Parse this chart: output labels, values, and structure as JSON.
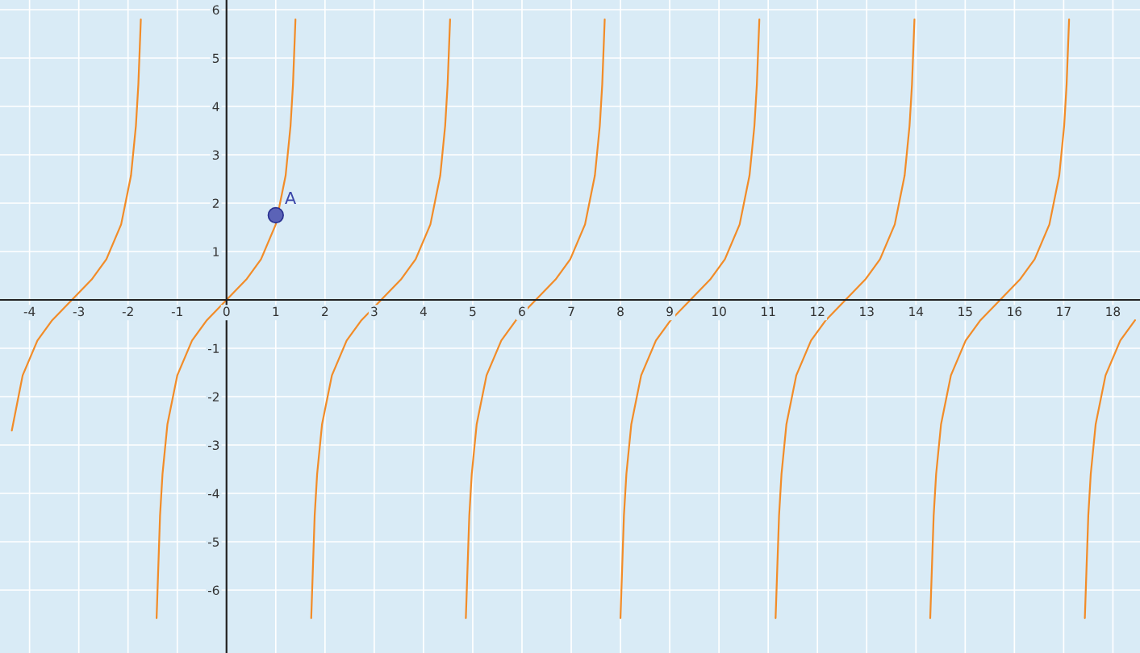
{
  "chart_data": {
    "type": "line",
    "xlim": [
      -4.6,
      18.55
    ],
    "ylim": [
      -7.3,
      6.2
    ],
    "xticks": [
      -4,
      -3,
      -2,
      -1,
      0,
      1,
      2,
      3,
      4,
      5,
      6,
      7,
      8,
      9,
      10,
      11,
      12,
      13,
      14,
      15,
      16,
      17,
      18
    ],
    "yticks": [
      -6,
      -5,
      -4,
      -3,
      -2,
      -1,
      {
        "value": 0,
        "label": null
      },
      1,
      2,
      3,
      4,
      5,
      6
    ],
    "grid": true,
    "marker": "none",
    "line_style": "solid",
    "series": [
      {
        "type": "line",
        "color": "#f28c28",
        "x": [
          -4.36,
          -4.14,
          -3.84,
          -3.54,
          -3.14,
          -2.74,
          -2.44,
          -2.14,
          -1.94,
          -1.84,
          -1.79,
          -1.74
        ],
        "values": [
          -2.7,
          -1.56,
          -0.84,
          -0.42,
          0,
          0.42,
          0.84,
          1.56,
          2.57,
          3.6,
          4.46,
          5.8
        ]
      },
      {
        "type": "line",
        "color": "#f28c28",
        "x": [
          -1.42,
          -1.35,
          -1.3,
          -1.2,
          -1.0,
          -0.7,
          -0.4,
          0,
          0.4,
          0.7,
          1.0,
          1.2,
          1.3,
          1.35,
          1.4
        ],
        "values": [
          -6.58,
          -4.46,
          -3.6,
          -2.57,
          -1.56,
          -0.84,
          -0.42,
          0,
          0.42,
          0.84,
          1.56,
          2.57,
          3.6,
          4.46,
          5.8
        ]
      },
      {
        "type": "line",
        "color": "#f28c28",
        "x": [
          1.72,
          1.79,
          1.84,
          1.94,
          2.14,
          2.44,
          2.74,
          3.14,
          3.54,
          3.84,
          4.14,
          4.34,
          4.44,
          4.49,
          4.54
        ],
        "values": [
          -6.58,
          -4.46,
          -3.6,
          -2.57,
          -1.56,
          -0.84,
          -0.42,
          0,
          0.42,
          0.84,
          1.56,
          2.57,
          3.6,
          4.46,
          5.8
        ]
      },
      {
        "type": "line",
        "color": "#f28c28",
        "x": [
          4.86,
          4.93,
          4.98,
          5.08,
          5.28,
          5.58,
          5.88,
          6.28,
          6.68,
          6.98,
          7.28,
          7.48,
          7.58,
          7.63,
          7.68
        ],
        "values": [
          -6.58,
          -4.46,
          -3.6,
          -2.57,
          -1.56,
          -0.84,
          -0.42,
          0,
          0.42,
          0.84,
          1.56,
          2.57,
          3.6,
          4.46,
          5.8
        ]
      },
      {
        "type": "line",
        "color": "#f28c28",
        "x": [
          8.0,
          8.07,
          8.12,
          8.22,
          8.42,
          8.72,
          9.02,
          9.42,
          9.82,
          10.12,
          10.42,
          10.62,
          10.72,
          10.77,
          10.82
        ],
        "values": [
          -6.58,
          -4.46,
          -3.6,
          -2.57,
          -1.56,
          -0.84,
          -0.42,
          0,
          0.42,
          0.84,
          1.56,
          2.57,
          3.6,
          4.46,
          5.8
        ]
      },
      {
        "type": "line",
        "color": "#f28c28",
        "x": [
          11.15,
          11.22,
          11.27,
          11.37,
          11.57,
          11.87,
          12.17,
          12.57,
          12.97,
          13.27,
          13.57,
          13.77,
          13.87,
          13.92,
          13.97
        ],
        "values": [
          -6.58,
          -4.46,
          -3.6,
          -2.57,
          -1.56,
          -0.84,
          -0.42,
          0,
          0.42,
          0.84,
          1.56,
          2.57,
          3.6,
          4.46,
          5.8
        ]
      },
      {
        "type": "line",
        "color": "#f28c28",
        "x": [
          14.29,
          14.36,
          14.41,
          14.51,
          14.71,
          15.01,
          15.31,
          15.71,
          16.11,
          16.41,
          16.71,
          16.91,
          17.01,
          17.06,
          17.11
        ],
        "values": [
          -6.58,
          -4.46,
          -3.6,
          -2.57,
          -1.56,
          -0.84,
          -0.42,
          0,
          0.42,
          0.84,
          1.56,
          2.57,
          3.6,
          4.46,
          5.8
        ]
      },
      {
        "type": "line",
        "color": "#f28c28",
        "x": [
          17.43,
          17.5,
          17.55,
          17.65,
          17.85,
          18.15,
          18.45
        ],
        "values": [
          -6.58,
          -4.46,
          -3.6,
          -2.57,
          -1.56,
          -0.84,
          -0.42
        ]
      },
      {
        "type": "scatter",
        "marker": "circle",
        "color": "#5b63b7",
        "x": [
          1
        ],
        "values": [
          1.75
        ]
      }
    ],
    "annotations": [
      {
        "text": "A",
        "x": 1,
        "y": 1.75
      }
    ]
  }
}
